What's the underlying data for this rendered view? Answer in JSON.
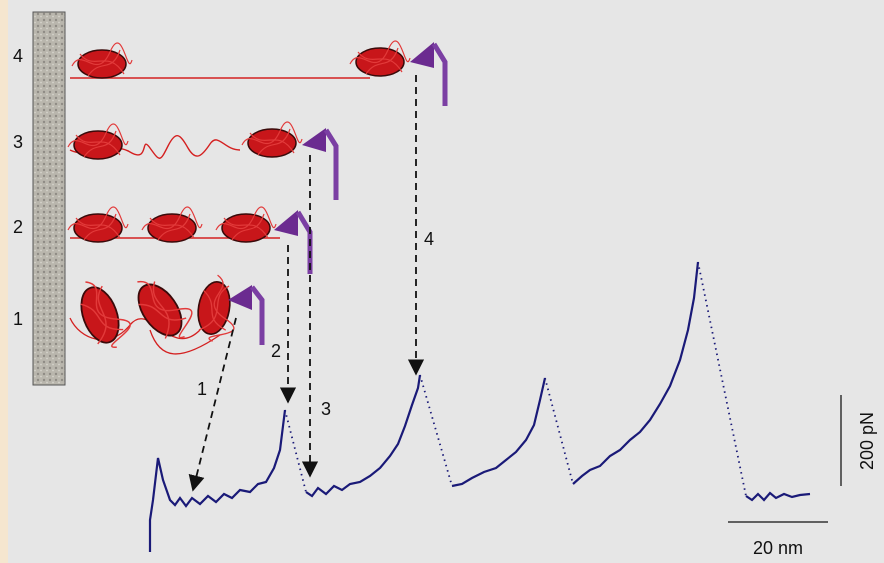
{
  "row_labels": [
    "4",
    "3",
    "2",
    "1"
  ],
  "arrow_labels": [
    "1",
    "2",
    "3",
    "4"
  ],
  "scale_bars": {
    "force": "200 pN",
    "distance": "20 nm"
  }
}
